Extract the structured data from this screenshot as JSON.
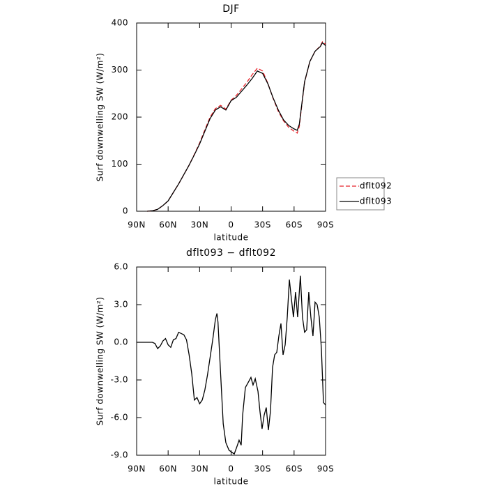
{
  "chart_data": [
    {
      "type": "line",
      "title": "DJF",
      "xlabel": "latitude",
      "ylabel": "Surf downwelling SW (W/m²)",
      "xlim": [
        90,
        -90
      ],
      "xticks": [
        {
          "value": 90,
          "label": "90N"
        },
        {
          "value": 60,
          "label": "60N"
        },
        {
          "value": 30,
          "label": "30N"
        },
        0,
        {
          "value": -30,
          "label": "30S"
        },
        {
          "value": -60,
          "label": "60S"
        },
        {
          "value": -90,
          "label": "90S"
        }
      ],
      "ylim": [
        0,
        400
      ],
      "yticks": [
        0,
        100,
        200,
        300,
        400
      ],
      "legend": "right",
      "x": [
        80,
        75,
        70,
        65,
        60,
        55,
        50,
        45,
        40,
        35,
        30,
        25,
        20,
        15,
        10,
        5,
        0,
        -5,
        -10,
        -15,
        -20,
        -25,
        -30,
        -35,
        -40,
        -45,
        -50,
        -55,
        -60,
        -63,
        -65,
        -67.5,
        -70,
        -75,
        -80,
        -85,
        -87,
        -90
      ],
      "series": [
        {
          "name": "dflt092",
          "color": "#e8232a",
          "style": "dashed",
          "values": [
            0,
            1,
            4,
            12,
            22,
            40,
            58,
            78,
            98,
            121,
            145,
            173,
            200,
            218,
            225,
            217,
            236,
            246,
            260,
            274,
            290,
            304,
            298,
            272,
            240,
            212,
            192,
            178,
            170,
            166,
            180,
            228,
            274,
            318,
            340,
            351,
            360,
            355
          ]
        },
        {
          "name": "dflt093",
          "color": "#000000",
          "style": "solid",
          "values": [
            0,
            1,
            4,
            12,
            22,
            40,
            58,
            78,
            98,
            120,
            143,
            170,
            197,
            215,
            222,
            215,
            235,
            242,
            255,
            268,
            282,
            298,
            293,
            271,
            241,
            215,
            194,
            182,
            175,
            172,
            185,
            230,
            275,
            318,
            340,
            350,
            358,
            352
          ]
        }
      ]
    },
    {
      "type": "line",
      "title": "dflt093 − dflt092",
      "xlabel": "latitude",
      "ylabel": "Surf downwelling SW (W/m²)",
      "xlim": [
        90,
        -90
      ],
      "xticks": [
        {
          "value": 90,
          "label": "90N"
        },
        {
          "value": 60,
          "label": "60N"
        },
        {
          "value": 30,
          "label": "30N"
        },
        0,
        {
          "value": -30,
          "label": "30S"
        },
        {
          "value": -60,
          "label": "60S"
        },
        {
          "value": -90,
          "label": "90S"
        }
      ],
      "ylim": [
        -9,
        6
      ],
      "yticks": [
        {
          "value": -9,
          "label": "-9.0"
        },
        {
          "value": -6,
          "label": "-6.0"
        },
        {
          "value": -3,
          "label": "-3.0"
        },
        {
          "value": 0,
          "label": "0.0"
        },
        {
          "value": 3,
          "label": "3.0"
        },
        {
          "value": 6,
          "label": "6.0"
        }
      ],
      "x": [
        90,
        75,
        72.5,
        70,
        67.5,
        65,
        62.5,
        60,
        57.5,
        55,
        52.5,
        50,
        47.5,
        45,
        42.5,
        40,
        37.5,
        35,
        32.5,
        30,
        27.5,
        25,
        22.5,
        20,
        17.5,
        15,
        13.5,
        12.5,
        10,
        7.5,
        5,
        2,
        -3,
        -5.6,
        -7.6,
        -9.6,
        -11,
        -13.6,
        -16.3,
        -18.9,
        -20.9,
        -23,
        -25.6,
        -27.5,
        -29.5,
        -31.5,
        -33.5,
        -35.5,
        -37.5,
        -39.5,
        -41.5,
        -43.5,
        -45.5,
        -47.5,
        -49.5,
        -51.5,
        -53.5,
        -55.5,
        -57.4,
        -59.4,
        -61.4,
        -63.4,
        -66,
        -68,
        -70,
        -72,
        -74,
        -76,
        -78,
        -80,
        -82,
        -84,
        -86,
        -88,
        -90
      ],
      "color": "#000000",
      "values": [
        0,
        0,
        -0.1,
        -0.5,
        -0.3,
        0.1,
        0.3,
        -0.2,
        -0.4,
        0.2,
        0.3,
        0.8,
        0.7,
        0.6,
        0.2,
        -1.0,
        -2.5,
        -4.6,
        -4.4,
        -4.9,
        -4.6,
        -3.8,
        -2.6,
        -1.2,
        0.2,
        1.8,
        2.3,
        1.6,
        -2.5,
        -6.5,
        -8.0,
        -8.6,
        -8.9,
        -8.3,
        -7.8,
        -8.2,
        -5.8,
        -3.6,
        -3.2,
        -2.8,
        -3.4,
        -2.9,
        -3.9,
        -5.5,
        -6.9,
        -5.8,
        -5.2,
        -7.0,
        -5.5,
        -2.0,
        -1.0,
        -0.8,
        0.5,
        1.5,
        -1.0,
        -0.2,
        2.0,
        5.0,
        3.5,
        2.0,
        4.0,
        2.0,
        5.3,
        2.0,
        0.8,
        1.0,
        4.0,
        2.0,
        0.5,
        3.2,
        3.0,
        2.0,
        -0.5,
        -4.8,
        -5.0
      ]
    }
  ]
}
